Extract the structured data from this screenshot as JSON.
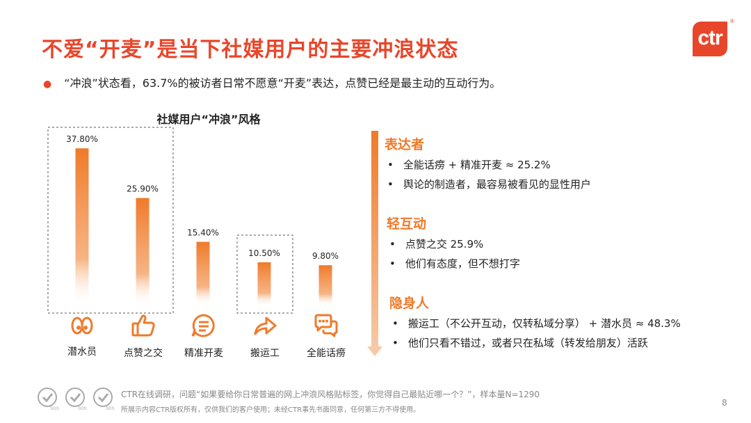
{
  "title": "不爱“开麦”是当下社媒用户的主要冲浪状态",
  "logo_text": "ctr",
  "logo_mark": "®",
  "subtitle": "“冲浪”状态看，63.7%的被访者日常不愿意“开麦”表达，点赞已经是最主动的互动行为。",
  "chart_data": {
    "type": "bar",
    "title": "社媒用户“冲浪”风格",
    "categories": [
      "潜水员",
      "点赞之交",
      "精准开麦",
      "搬运工",
      "全能话痨"
    ],
    "values": [
      37.8,
      25.9,
      15.4,
      10.5,
      9.8
    ],
    "value_labels": [
      "37.80%",
      "25.90%",
      "15.40%",
      "10.50%",
      "9.80%"
    ],
    "icons": [
      "eyes-icon",
      "thumbs-up-icon",
      "speech-bubble-icon",
      "forward-arrow-icon",
      "chat-bubbles-icon"
    ],
    "ylim": [
      0,
      40
    ],
    "grid": false,
    "bar_color": "#ef7a2a"
  },
  "sections": [
    {
      "title": "表达者",
      "bullets": [
        "全能话痨 + 精准开麦 ≈ 25.2%",
        "舆论的制造者，最容易被看见的显性用户"
      ]
    },
    {
      "title": "轻互动",
      "bullets": [
        "点赞之交 25.9%",
        "他们有态度，但不想打字"
      ]
    },
    {
      "title": "隐身人",
      "bullets": [
        "搬运工（不公开互动，仅转私域分享） + 潜水员 ≈ 48.3%",
        "他们只看不错过，或者只在私域（转发给朋友）活跃"
      ]
    }
  ],
  "bullet_char": "•",
  "footer": {
    "source": "CTR在线调研，问题“如果要给你日常普遍的网上冲浪风格贴标签，你觉得自己最贴近哪一个？”，样本量N=1290",
    "copyright": "所展示内容CTR版权所有，仅供我们的客户使用；未经CTR事先书面同意，任何第三方不得使用。",
    "badge_text": "SGS"
  },
  "page_number": "8",
  "colors": {
    "accent": "#e8462a",
    "orange": "#ef7a2a"
  }
}
